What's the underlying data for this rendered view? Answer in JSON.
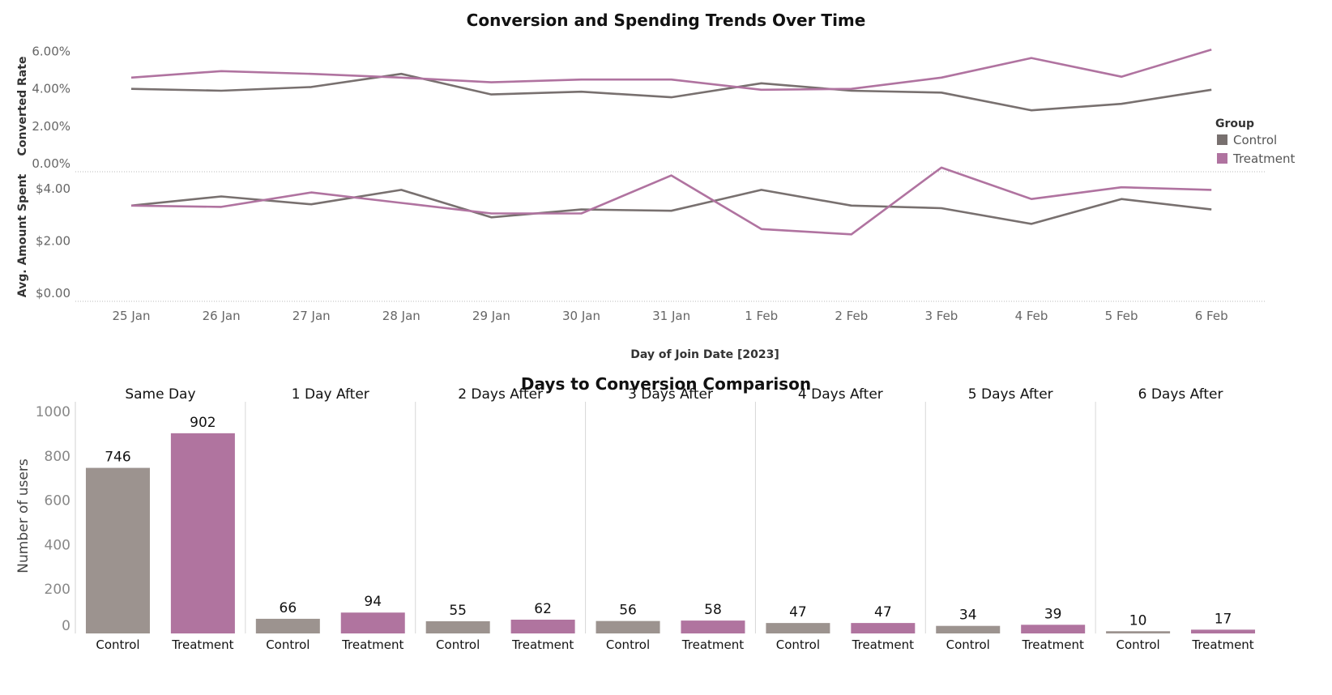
{
  "colors": {
    "control": "#78706f",
    "treatment": "#b073a0",
    "control_bar": "#9c938f",
    "treatment_bar": "#b0749f"
  },
  "chart_data": [
    {
      "type": "line",
      "title": "Conversion and Spending Trends Over Time",
      "xlabel": "Day of Join Date [2023]",
      "categories": [
        "25 Jan",
        "26 Jan",
        "27 Jan",
        "28 Jan",
        "29 Jan",
        "30 Jan",
        "31 Jan",
        "1 Feb",
        "2 Feb",
        "3 Feb",
        "4 Feb",
        "5 Feb",
        "6 Feb"
      ],
      "legend": {
        "title": "Group",
        "position": "right",
        "items": [
          "Control",
          "Treatment"
        ]
      },
      "panels": [
        {
          "ylabel": "Converted Rate",
          "yticks": [
            "0.00%",
            "2.00%",
            "4.00%",
            "6.00%"
          ],
          "ytick_values": [
            0,
            2,
            4,
            6
          ],
          "ylim": [
            0,
            6.5
          ],
          "series": [
            {
              "name": "Control",
              "values": [
                4.0,
                3.9,
                4.1,
                4.8,
                3.7,
                3.85,
                3.55,
                4.3,
                3.9,
                3.8,
                2.85,
                3.2,
                3.95
              ]
            },
            {
              "name": "Treatment",
              "values": [
                4.6,
                4.95,
                4.8,
                4.6,
                4.35,
                4.5,
                4.5,
                3.95,
                4.0,
                4.6,
                5.65,
                4.65,
                6.1
              ]
            }
          ]
        },
        {
          "ylabel": "Avg. Amount Spent",
          "yticks": [
            "$0.00",
            "$2.00",
            "$4.00"
          ],
          "ytick_values": [
            0,
            2,
            4
          ],
          "ylim": [
            0,
            4.55
          ],
          "series": [
            {
              "name": "Control",
              "values": [
                3.35,
                3.7,
                3.4,
                3.95,
                2.9,
                3.2,
                3.15,
                3.95,
                3.35,
                3.25,
                2.65,
                3.6,
                3.2
              ]
            },
            {
              "name": "Treatment",
              "values": [
                3.35,
                3.3,
                3.85,
                3.45,
                3.05,
                3.05,
                4.5,
                2.45,
                2.25,
                4.8,
                3.6,
                4.05,
                3.95
              ]
            }
          ]
        }
      ]
    },
    {
      "type": "bar",
      "title": "Days to Conversion Comparison",
      "ylabel": "Number of users",
      "ylim": [
        0,
        1040
      ],
      "yticks": [
        "0",
        "200",
        "400",
        "600",
        "800",
        "1000"
      ],
      "ytick_values": [
        0,
        200,
        400,
        600,
        800,
        1000
      ],
      "panels": [
        {
          "label": "Same Day",
          "categories": [
            "Control",
            "Treatment"
          ],
          "values": [
            746,
            902
          ]
        },
        {
          "label": "1 Day After",
          "categories": [
            "Control",
            "Treatment"
          ],
          "values": [
            66,
            94
          ]
        },
        {
          "label": "2 Days After",
          "categories": [
            "Control",
            "Treatment"
          ],
          "values": [
            55,
            62
          ]
        },
        {
          "label": "3 Days After",
          "categories": [
            "Control",
            "Treatment"
          ],
          "values": [
            56,
            58
          ]
        },
        {
          "label": "4 Days After",
          "categories": [
            "Control",
            "Treatment"
          ],
          "values": [
            47,
            47
          ]
        },
        {
          "label": "5 Days After",
          "categories": [
            "Control",
            "Treatment"
          ],
          "values": [
            34,
            39
          ]
        },
        {
          "label": "6 Days After",
          "categories": [
            "Control",
            "Treatment"
          ],
          "values": [
            10,
            17
          ]
        }
      ]
    }
  ]
}
